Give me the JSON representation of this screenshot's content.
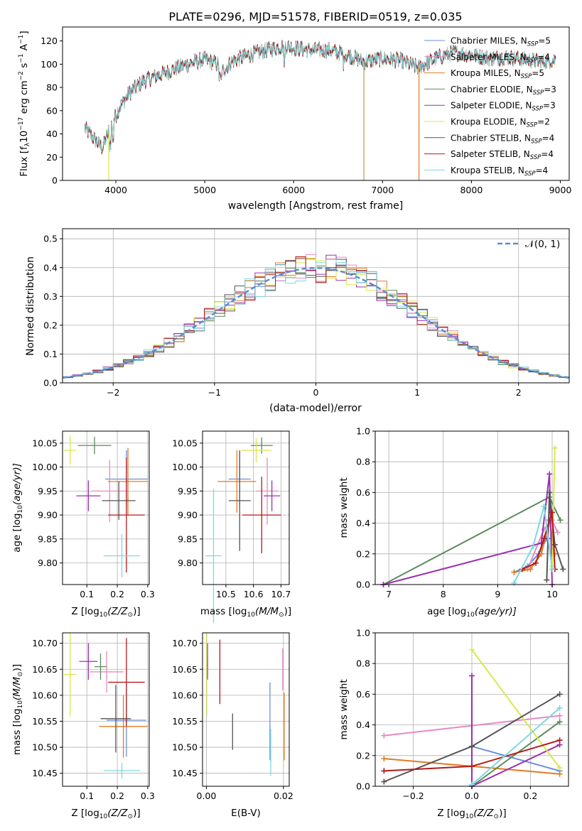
{
  "chart_data": [
    {
      "id": "spectrum",
      "type": "line",
      "title": "PLATE=0296, MJD=51578, FIBERID=0519, z=0.035",
      "xlabel": "wavelength [Angstrom, rest frame]",
      "ylabel_parts": [
        "Flux [f",
        "λ",
        "10",
        "−17",
        " erg cm",
        "−2",
        " s",
        "−1",
        " A",
        "−1",
        "]"
      ],
      "xlim": [
        3400,
        9100
      ],
      "ylim": [
        0,
        132
      ],
      "xticks": [
        4000,
        5000,
        6000,
        7000,
        8000,
        9000
      ],
      "yticks": [
        0,
        20,
        40,
        60,
        80,
        100,
        120
      ],
      "grid": false,
      "legend_placement": "top-right",
      "legend": [
        {
          "name": "Chabrier MILES, N_SSP=5",
          "base": "Chabrier MILES, N",
          "sub": "SSP",
          "tail": "=5",
          "color": "#6b8fd9"
        },
        {
          "name": "Salpeter MILES, N_SSP=4",
          "base": "Salpeter MILES, N",
          "sub": "SSP",
          "tail": "=4",
          "color": "#e78ac3"
        },
        {
          "name": "Kroupa MILES, N_SSP=5",
          "base": "Kroupa MILES, N",
          "sub": "SSP",
          "tail": "=5",
          "color": "#e07b22"
        },
        {
          "name": "Chabrier ELODIE, N_SSP=3",
          "base": "Chabrier ELODIE, N",
          "sub": "SSP",
          "tail": "=3",
          "color": "#5d8a5d"
        },
        {
          "name": "Salpeter ELODIE, N_SSP=3",
          "base": "Salpeter ELODIE, N",
          "sub": "SSP",
          "tail": "=3",
          "color": "#9b30b0"
        },
        {
          "name": "Kroupa ELODIE, N_SSP=2",
          "base": "Kroupa ELODIE, N",
          "sub": "SSP",
          "tail": "=2",
          "color": "#d9e84a"
        },
        {
          "name": "Chabrier STELIB, N_SSP=4",
          "base": "Chabrier STELIB, N",
          "sub": "SSP",
          "tail": "=4",
          "color": "#555555"
        },
        {
          "name": "Salpeter STELIB, N_SSP=4",
          "base": "Salpeter STELIB, N",
          "sub": "SSP",
          "tail": "=4",
          "color": "#b41919"
        },
        {
          "name": "Kroupa STELIB, N_SSP=4",
          "base": "Kroupa STELIB, N",
          "sub": "SSP",
          "tail": "=4",
          "color": "#7fd8e0"
        }
      ],
      "continuum": {
        "x": [
          3650,
          3750,
          3850,
          3950,
          4050,
          4150,
          4300,
          4500,
          4700,
          4850,
          5000,
          5150,
          5200,
          5300,
          5500,
          5700,
          5900,
          6000,
          6200,
          6400,
          6600,
          6800,
          7000,
          7200,
          7400,
          7600,
          7800,
          8000,
          8200,
          8400,
          8600,
          8800,
          8950
        ],
        "y": [
          45,
          36,
          28,
          48,
          64,
          75,
          85,
          91,
          97,
          101,
          104,
          100,
          94,
          102,
          108,
          112,
          116,
          114,
          112,
          112,
          108,
          102,
          105,
          103,
          97,
          105,
          110,
          108,
          105,
          106,
          104,
          102,
          104
        ]
      },
      "drops": [
        {
          "x": 3920,
          "color": "#d9e84a"
        },
        {
          "x": 6790,
          "color": "#b0a040"
        },
        {
          "x": 7410,
          "color": "#e07b22"
        }
      ]
    },
    {
      "id": "residuals",
      "type": "histogram",
      "xlabel": "(data-model)/error",
      "ylabel": "Normed distribution",
      "xlim": [
        -2.5,
        2.5
      ],
      "ylim": [
        0,
        0.535
      ],
      "xticks": [
        -2,
        -1,
        0,
        1,
        2
      ],
      "xticklabels": [
        "−2",
        "−1",
        "0",
        "1",
        "2"
      ],
      "yticks": [
        0.0,
        0.1,
        0.2,
        0.3,
        0.4,
        0.5
      ],
      "grid": true,
      "legend_placement": "top-right",
      "bin_width": 0.1,
      "gaussian_label": "𝒩(0, 1)",
      "gaussian_color": "#5b8ad6"
    },
    {
      "id": "age_vs_Z",
      "type": "errorbar",
      "xlabel_base": "Z [log",
      "xlabel_sub": "10",
      "xlabel_expr": "(Z/Z",
      "xlabel_sun": "⊙",
      "xlabel_end": ")]",
      "ylabel_base": "age  [log",
      "ylabel_sub": "10",
      "ylabel_expr": "(age/yr)]",
      "xlim": [
        0.02,
        0.305
      ],
      "ylim": [
        9.755,
        10.075
      ],
      "xticks": [
        0.1,
        0.2,
        0.3
      ],
      "yticks": [
        9.8,
        9.85,
        9.9,
        9.95,
        10.0,
        10.05
      ],
      "points": [
        {
          "x": 0.23,
          "y": 9.975,
          "xerr": 0.07,
          "yerr": 0.06,
          "color": "#6b8fd9"
        },
        {
          "x": 0.175,
          "y": 9.95,
          "xerr": 0.06,
          "yerr": 0.065,
          "color": "#e78ac3"
        },
        {
          "x": 0.235,
          "y": 9.97,
          "xerr": 0.065,
          "yerr": 0.07,
          "color": "#e07b22"
        },
        {
          "x": 0.125,
          "y": 10.045,
          "xerr": 0.055,
          "yerr": 0.018,
          "color": "#5d8a5d"
        },
        {
          "x": 0.105,
          "y": 9.94,
          "xerr": 0.04,
          "yerr": 0.032,
          "color": "#9b30b0"
        },
        {
          "x": 0.045,
          "y": 10.035,
          "xerr": 0.02,
          "yerr": 0.03,
          "color": "#d9e84a"
        },
        {
          "x": 0.205,
          "y": 9.93,
          "xerr": 0.055,
          "yerr": 0.04,
          "color": "#555555"
        },
        {
          "x": 0.23,
          "y": 9.9,
          "xerr": 0.06,
          "yerr": 0.12,
          "color": "#b41919"
        },
        {
          "x": 0.215,
          "y": 9.815,
          "xerr": 0.06,
          "yerr": 0.045,
          "color": "#7fd8e0"
        }
      ]
    },
    {
      "id": "age_vs_mass",
      "type": "errorbar",
      "xlabel_base": "mass [log",
      "xlabel_sub": "10",
      "xlabel_expr": "(M/M",
      "xlabel_sun": "⊙",
      "xlabel_end": ")]",
      "xlim": [
        10.415,
        10.73
      ],
      "ylim": [
        9.755,
        10.075
      ],
      "xticks": [
        10.5,
        10.6,
        10.7
      ],
      "yticks": [
        9.8,
        9.85,
        9.9,
        9.95,
        10.0,
        10.05
      ],
      "points": [
        {
          "x": 10.55,
          "y": 9.975,
          "xerr": 0.04,
          "yerr": 0.055,
          "color": "#6b8fd9"
        },
        {
          "x": 10.65,
          "y": 9.95,
          "xerr": 0.04,
          "yerr": 0.07,
          "color": "#e78ac3"
        },
        {
          "x": 10.54,
          "y": 9.97,
          "xerr": 0.07,
          "yerr": 0.065,
          "color": "#e07b22"
        },
        {
          "x": 10.63,
          "y": 10.045,
          "xerr": 0.04,
          "yerr": 0.017,
          "color": "#5d8a5d"
        },
        {
          "x": 10.667,
          "y": 9.94,
          "xerr": 0.03,
          "yerr": 0.032,
          "color": "#9b30b0"
        },
        {
          "x": 10.61,
          "y": 10.035,
          "xerr": 0.055,
          "yerr": 0.025,
          "color": "#d9e84a"
        },
        {
          "x": 10.55,
          "y": 9.93,
          "xerr": 0.04,
          "yerr": 0.105,
          "color": "#555555"
        },
        {
          "x": 10.63,
          "y": 9.9,
          "xerr": 0.07,
          "yerr": 0.08,
          "color": "#b41919"
        },
        {
          "x": 10.455,
          "y": 9.815,
          "xerr": 0.03,
          "yerr": 0.14,
          "color": "#7fd8e0"
        }
      ]
    },
    {
      "id": "weight_vs_age",
      "type": "line",
      "xlabel_base": "age  [log",
      "xlabel_sub": "10",
      "xlabel_expr": "(age/yr)]",
      "ylabel": "mass weight",
      "xlim": [
        6.75,
        10.3
      ],
      "ylim": [
        0.0,
        1.0
      ],
      "xticks": [
        7,
        8,
        9,
        10
      ],
      "yticks": [
        0.0,
        0.2,
        0.4,
        0.6,
        0.8,
        1.0
      ],
      "yticklabels": [
        "0.0",
        "0.2",
        "0.4",
        "0.6",
        "0.8",
        "1.0"
      ],
      "grid": true,
      "series": [
        {
          "color": "#6b8fd9",
          "x": [
            9.3,
            9.55,
            9.75,
            9.9,
            10.0
          ],
          "y": [
            0.08,
            0.12,
            0.2,
            0.3,
            0.3
          ]
        },
        {
          "color": "#e78ac3",
          "x": [
            9.55,
            9.85,
            10.0,
            10.1
          ],
          "y": [
            0.1,
            0.36,
            0.42,
            0.34
          ]
        },
        {
          "color": "#e07b22",
          "x": [
            9.3,
            9.6,
            9.8,
            9.95,
            10.05
          ],
          "y": [
            0.08,
            0.1,
            0.2,
            0.42,
            0.2
          ]
        },
        {
          "color": "#5d8a5d",
          "x": [
            6.9,
            9.95,
            10.15
          ],
          "y": [
            0.0,
            0.57,
            0.42
          ]
        },
        {
          "color": "#9b30b0",
          "x": [
            6.9,
            9.8,
            9.95,
            10.0
          ],
          "y": [
            0.0,
            0.27,
            0.72,
            0.0
          ]
        },
        {
          "color": "#d9e84a",
          "x": [
            10.0,
            10.05
          ],
          "y": [
            0.12,
            0.89
          ]
        },
        {
          "color": "#555555",
          "x": [
            9.9,
            9.95,
            10.05,
            10.2
          ],
          "y": [
            0.03,
            0.6,
            0.26,
            0.1
          ]
        },
        {
          "color": "#b41919",
          "x": [
            9.45,
            9.7,
            9.85,
            10.0,
            10.05
          ],
          "y": [
            0.1,
            0.14,
            0.3,
            0.47,
            0.1
          ]
        },
        {
          "color": "#7fd8e0",
          "x": [
            9.3,
            9.65,
            9.85,
            10.0
          ],
          "y": [
            0.01,
            0.25,
            0.51,
            0.1
          ]
        }
      ]
    },
    {
      "id": "mass_vs_Z",
      "type": "errorbar",
      "xlabel_base": "Z [log",
      "xlabel_sub": "10",
      "xlabel_expr": "(Z/Z",
      "xlabel_sun": "⊙",
      "xlabel_end": ")]",
      "ylabel_base": "mass [log",
      "ylabel_sub": "10",
      "ylabel_expr": "(M/M",
      "ylabel_sun": "⊙",
      "ylabel_end": ")]",
      "xlim": [
        0.02,
        0.305
      ],
      "ylim": [
        10.425,
        10.72
      ],
      "xticks": [
        0.1,
        0.2,
        0.3
      ],
      "yticks": [
        10.45,
        10.5,
        10.55,
        10.6,
        10.65,
        10.7
      ],
      "points": [
        {
          "x": 0.23,
          "y": 10.552,
          "xerr": 0.065,
          "yerr": 0.07,
          "color": "#6b8fd9"
        },
        {
          "x": 0.165,
          "y": 10.645,
          "xerr": 0.055,
          "yerr": 0.04,
          "color": "#e78ac3"
        },
        {
          "x": 0.22,
          "y": 10.54,
          "xerr": 0.08,
          "yerr": 0.06,
          "color": "#e07b22"
        },
        {
          "x": 0.145,
          "y": 10.655,
          "xerr": 0.02,
          "yerr": 0.025,
          "color": "#5d8a5d"
        },
        {
          "x": 0.105,
          "y": 10.665,
          "xerr": 0.03,
          "yerr": 0.035,
          "color": "#9b30b0"
        },
        {
          "x": 0.045,
          "y": 10.64,
          "xerr": 0.02,
          "yerr": 0.08,
          "color": "#d9e84a"
        },
        {
          "x": 0.195,
          "y": 10.555,
          "xerr": 0.05,
          "yerr": 0.065,
          "color": "#555555"
        },
        {
          "x": 0.23,
          "y": 10.625,
          "xerr": 0.06,
          "yerr": 0.085,
          "color": "#b41919"
        },
        {
          "x": 0.215,
          "y": 10.455,
          "xerr": 0.06,
          "yerr": 0.015,
          "color": "#7fd8e0"
        }
      ]
    },
    {
      "id": "mass_vs_EBV",
      "type": "errorbar",
      "xlabel": "E(B-V)",
      "xlim": [
        -0.001,
        0.0215
      ],
      "ylim": [
        10.425,
        10.72
      ],
      "xticks": [
        0.0,
        0.02
      ],
      "xticklabels": [
        "0.00",
        "0.02"
      ],
      "yticks": [
        10.45,
        10.5,
        10.55,
        10.6,
        10.65,
        10.7
      ],
      "points": [
        {
          "x": 0.0165,
          "y": 10.55,
          "yerr": 0.075,
          "color": "#6b8fd9"
        },
        {
          "x": 0.0198,
          "y": 10.65,
          "yerr": 0.04,
          "color": "#e78ac3"
        },
        {
          "x": 0.0202,
          "y": 10.54,
          "yerr": 0.065,
          "color": "#e07b22"
        },
        {
          "x": 0.0003,
          "y": 10.655,
          "yerr": 0.02,
          "color": "#5d8a5d"
        },
        {
          "x": 0.0003,
          "y": 10.665,
          "yerr": 0.035,
          "color": "#9b30b0"
        },
        {
          "x": 0.0001,
          "y": 10.64,
          "yerr": 0.08,
          "color": "#d9e84a"
        },
        {
          "x": 0.0068,
          "y": 10.53,
          "yerr": 0.035,
          "color": "#555555"
        },
        {
          "x": 0.0035,
          "y": 10.645,
          "yerr": 0.062,
          "color": "#b41919"
        },
        {
          "x": 0.0167,
          "y": 10.49,
          "yerr": 0.045,
          "color": "#7fd8e0"
        }
      ]
    },
    {
      "id": "weight_vs_Z",
      "type": "line",
      "xlabel_base": "Z [log",
      "xlabel_sub": "10",
      "xlabel_expr": "(Z/Z",
      "xlabel_sun": "⊙",
      "xlabel_end": ")]",
      "ylabel": "mass weight",
      "xlim": [
        -0.33,
        0.33
      ],
      "ylim": [
        0.0,
        1.0
      ],
      "xticks": [
        -0.2,
        0.0,
        0.2
      ],
      "xticklabels": [
        "−0.2",
        "0.0",
        "0.2"
      ],
      "yticks": [
        0.0,
        0.2,
        0.4,
        0.6,
        0.8,
        1.0
      ],
      "yticklabels": [
        "0.0",
        "0.2",
        "0.4",
        "0.6",
        "0.8",
        "1.0"
      ],
      "grid": true,
      "series": [
        {
          "color": "#6b8fd9",
          "x": [
            0.0,
            0.3
          ],
          "y": [
            0.26,
            0.1
          ]
        },
        {
          "color": "#e78ac3",
          "x": [
            -0.3,
            0.3
          ],
          "y": [
            0.33,
            0.46
          ]
        },
        {
          "color": "#e07b22",
          "x": [
            -0.3,
            0.3
          ],
          "y": [
            0.18,
            0.08
          ]
        },
        {
          "color": "#5d8a5d",
          "x": [
            0.0,
            0.3
          ],
          "y": [
            0.0,
            0.42
          ]
        },
        {
          "color": "#9b30b0",
          "x": [
            0.0,
            0.0,
            0.3
          ],
          "y": [
            0.72,
            0.0,
            0.27
          ]
        },
        {
          "color": "#d9e84a",
          "x": [
            0.0,
            0.3
          ],
          "y": [
            0.89,
            0.12
          ]
        },
        {
          "color": "#555555",
          "x": [
            -0.3,
            0.0,
            0.3
          ],
          "y": [
            0.03,
            0.26,
            0.6
          ]
        },
        {
          "color": "#b41919",
          "x": [
            -0.3,
            0.0,
            0.3
          ],
          "y": [
            0.1,
            0.13,
            0.3
          ]
        },
        {
          "color": "#7fd8e0",
          "x": [
            0.0,
            0.3
          ],
          "y": [
            0.01,
            0.51
          ]
        }
      ]
    }
  ]
}
